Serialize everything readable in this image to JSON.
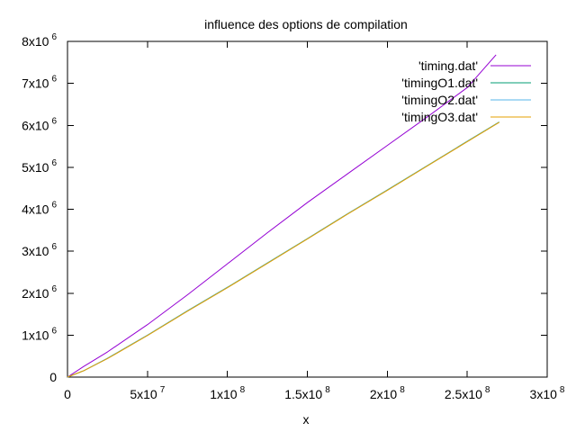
{
  "chart_data": {
    "type": "line",
    "title": "influence des options de compilation",
    "xlabel": "x",
    "ylabel": "",
    "xlim": [
      0,
      300000000
    ],
    "ylim": [
      0,
      8000000
    ],
    "grid": false,
    "legend_position": "top-right",
    "x_ticks": [
      {
        "value": 0,
        "base": "0",
        "exp": ""
      },
      {
        "value": 50000000,
        "base": "5x10",
        "exp": "7"
      },
      {
        "value": 100000000,
        "base": "1x10",
        "exp": "8"
      },
      {
        "value": 150000000,
        "base": "1.5x10",
        "exp": "8"
      },
      {
        "value": 200000000,
        "base": "2x10",
        "exp": "8"
      },
      {
        "value": 250000000,
        "base": "2.5x10",
        "exp": "8"
      },
      {
        "value": 300000000,
        "base": "3x10",
        "exp": "8"
      }
    ],
    "y_ticks": [
      {
        "value": 0,
        "base": "0",
        "exp": ""
      },
      {
        "value": 1000000,
        "base": "1x10",
        "exp": "6"
      },
      {
        "value": 2000000,
        "base": "2x10",
        "exp": "6"
      },
      {
        "value": 3000000,
        "base": "3x10",
        "exp": "6"
      },
      {
        "value": 4000000,
        "base": "4x10",
        "exp": "6"
      },
      {
        "value": 5000000,
        "base": "5x10",
        "exp": "6"
      },
      {
        "value": 6000000,
        "base": "6x10",
        "exp": "6"
      },
      {
        "value": 7000000,
        "base": "7x10",
        "exp": "6"
      },
      {
        "value": 8000000,
        "base": "8x10",
        "exp": "6"
      }
    ],
    "series": [
      {
        "name": "'timing.dat'",
        "color": "#9400d3",
        "x": [
          0,
          10000000,
          25000000,
          50000000,
          75000000,
          100000000,
          125000000,
          150000000,
          175000000,
          200000000,
          225000000,
          250000000,
          268000000
        ],
        "y": [
          0,
          250000,
          600000,
          1250000,
          1960000,
          2700000,
          3440000,
          4160000,
          4840000,
          5520000,
          6200000,
          6900000,
          7680000
        ]
      },
      {
        "name": "'timingO1.dat'",
        "color": "#009e73",
        "x": [
          0,
          10000000,
          25000000,
          50000000,
          75000000,
          100000000,
          125000000,
          150000000,
          175000000,
          200000000,
          225000000,
          250000000,
          270000000
        ],
        "y": [
          0,
          150000,
          450000,
          1000000,
          1580000,
          2140000,
          2720000,
          3300000,
          3890000,
          4460000,
          5040000,
          5620000,
          6080000
        ]
      },
      {
        "name": "'timingO2.dat'",
        "color": "#56b4e9",
        "x": [
          0,
          10000000,
          25000000,
          50000000,
          75000000,
          100000000,
          125000000,
          150000000,
          175000000,
          200000000,
          225000000,
          250000000,
          270000000
        ],
        "y": [
          0,
          150000,
          445000,
          995000,
          1575000,
          2135000,
          2715000,
          3295000,
          3885000,
          4455000,
          5035000,
          5615000,
          6075000
        ]
      },
      {
        "name": "'timingO3.dat'",
        "color": "#e69f00",
        "x": [
          0,
          10000000,
          25000000,
          50000000,
          75000000,
          100000000,
          125000000,
          150000000,
          175000000,
          200000000,
          225000000,
          250000000,
          270000000
        ],
        "y": [
          0,
          150000,
          440000,
          990000,
          1570000,
          2130000,
          2710000,
          3290000,
          3880000,
          4450000,
          5030000,
          5610000,
          6070000
        ]
      }
    ]
  }
}
